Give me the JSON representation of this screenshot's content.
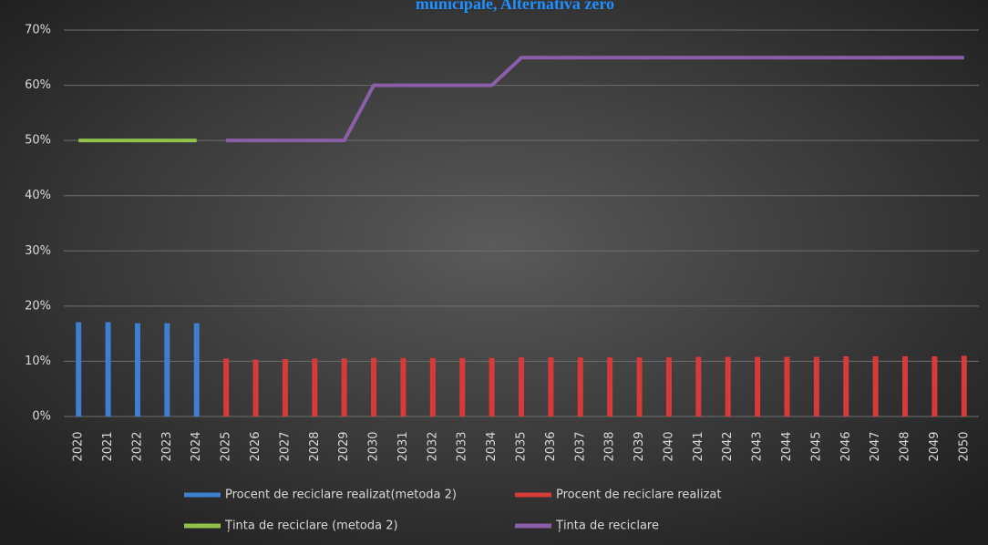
{
  "chart_data": {
    "type": "combo",
    "title": "municipale, Alternativa zero",
    "categories": [
      "2020",
      "2021",
      "2022",
      "2023",
      "2024",
      "2025",
      "2026",
      "2027",
      "2028",
      "2029",
      "2030",
      "2031",
      "2032",
      "2033",
      "2034",
      "2035",
      "2036",
      "2037",
      "2038",
      "2039",
      "2040",
      "2041",
      "2042",
      "2043",
      "2044",
      "2045",
      "2046",
      "2047",
      "2048",
      "2049",
      "2050"
    ],
    "series": [
      {
        "name": "Procent de reciclare realizat(metoda 2)",
        "type": "bar",
        "color": "#3f7fd0",
        "values": [
          17.1,
          17.1,
          16.9,
          16.9,
          16.9,
          null,
          null,
          null,
          null,
          null,
          null,
          null,
          null,
          null,
          null,
          null,
          null,
          null,
          null,
          null,
          null,
          null,
          null,
          null,
          null,
          null,
          null,
          null,
          null,
          null,
          null
        ]
      },
      {
        "name": "Procent de reciclare realizat",
        "type": "bar",
        "color": "#d83a3a",
        "values": [
          null,
          null,
          null,
          null,
          null,
          10.5,
          10.3,
          10.4,
          10.5,
          10.5,
          10.6,
          10.6,
          10.6,
          10.6,
          10.6,
          10.7,
          10.7,
          10.7,
          10.7,
          10.7,
          10.7,
          10.8,
          10.8,
          10.8,
          10.8,
          10.8,
          10.9,
          10.9,
          10.9,
          10.9,
          11.0
        ]
      },
      {
        "name": "Ținta de reciclare (metoda 2)",
        "type": "line",
        "color": "#92c24a",
        "values": [
          50,
          50,
          50,
          50,
          50,
          null,
          null,
          null,
          null,
          null,
          null,
          null,
          null,
          null,
          null,
          null,
          null,
          null,
          null,
          null,
          null,
          null,
          null,
          null,
          null,
          null,
          null,
          null,
          null,
          null,
          null
        ]
      },
      {
        "name": "Ținta de reciclare",
        "type": "line",
        "color": "#8a5ea8",
        "values": [
          null,
          null,
          null,
          null,
          null,
          50,
          50,
          50,
          50,
          50,
          60,
          60,
          60,
          60,
          60,
          65,
          65,
          65,
          65,
          65,
          65,
          65,
          65,
          65,
          65,
          65,
          65,
          65,
          65,
          65,
          65
        ]
      }
    ],
    "ylim": [
      0,
      70
    ],
    "yticks": [
      {
        "value": 0,
        "label": "0%"
      },
      {
        "value": 10,
        "label": "10%"
      },
      {
        "value": 20,
        "label": "20%"
      },
      {
        "value": 30,
        "label": "30%"
      },
      {
        "value": 40,
        "label": "40%"
      },
      {
        "value": 50,
        "label": "50%"
      },
      {
        "value": 60,
        "label": "60%"
      },
      {
        "value": 70,
        "label": "70%"
      }
    ],
    "grid": true,
    "legend": "bottom"
  }
}
